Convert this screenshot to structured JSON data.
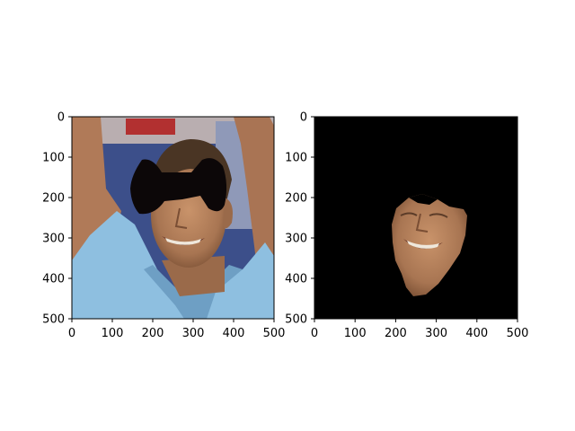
{
  "colors": {
    "figure_bg": "#ffffff",
    "axes_frame": "#000000",
    "mask_bg": "#000000",
    "bowtie": "#0c0708",
    "shirt": "#8ebfe0",
    "shirt_shadow": "#6e9fc4",
    "skin": "#b3825e",
    "skin_dark": "#8a5e40",
    "hair": "#4a3524",
    "background_stands": "#3c4f8a"
  },
  "chart_data": [
    {
      "type": "image",
      "subject": "photo of smiling man with raised arms and a black bow-tie shaped occlusion over the eyes",
      "xlim": [
        0,
        500
      ],
      "ylim": [
        500,
        0
      ],
      "xticks": [
        0,
        100,
        200,
        300,
        400,
        500
      ],
      "yticks": [
        0,
        100,
        200,
        300,
        400,
        500
      ],
      "xtick_labels": [
        "0",
        "100",
        "200",
        "300",
        "400",
        "500"
      ],
      "ytick_labels": [
        "0",
        "100",
        "200",
        "300",
        "400",
        "500"
      ],
      "grid": false
    },
    {
      "type": "image",
      "subject": "segmented face region on black background",
      "xlim": [
        0,
        500
      ],
      "ylim": [
        500,
        0
      ],
      "xticks": [
        0,
        100,
        200,
        300,
        400,
        500
      ],
      "yticks": [
        0,
        100,
        200,
        300,
        400,
        500
      ],
      "xtick_labels": [
        "0",
        "100",
        "200",
        "300",
        "400",
        "500"
      ],
      "ytick_labels": [
        "0",
        "100",
        "200",
        "300",
        "400",
        "500"
      ],
      "grid": false
    }
  ]
}
